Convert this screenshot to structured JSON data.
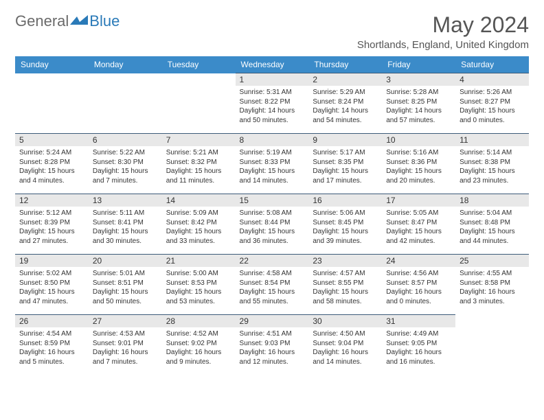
{
  "logo": {
    "text_general": "General",
    "text_blue": "Blue"
  },
  "title": "May 2024",
  "location": "Shortlands, England, United Kingdom",
  "colors": {
    "header_bg": "#3b8bc9",
    "header_text": "#ffffff",
    "daynum_bg": "#e8e8e8",
    "border": "#3b5a78",
    "logo_gray": "#6a6a6a",
    "logo_blue": "#2a7ab8"
  },
  "day_names": [
    "Sunday",
    "Monday",
    "Tuesday",
    "Wednesday",
    "Thursday",
    "Friday",
    "Saturday"
  ],
  "weeks": [
    [
      null,
      null,
      null,
      {
        "n": "1",
        "sr": "5:31 AM",
        "ss": "8:22 PM",
        "dl": "14 hours and 50 minutes."
      },
      {
        "n": "2",
        "sr": "5:29 AM",
        "ss": "8:24 PM",
        "dl": "14 hours and 54 minutes."
      },
      {
        "n": "3",
        "sr": "5:28 AM",
        "ss": "8:25 PM",
        "dl": "14 hours and 57 minutes."
      },
      {
        "n": "4",
        "sr": "5:26 AM",
        "ss": "8:27 PM",
        "dl": "15 hours and 0 minutes."
      }
    ],
    [
      {
        "n": "5",
        "sr": "5:24 AM",
        "ss": "8:28 PM",
        "dl": "15 hours and 4 minutes."
      },
      {
        "n": "6",
        "sr": "5:22 AM",
        "ss": "8:30 PM",
        "dl": "15 hours and 7 minutes."
      },
      {
        "n": "7",
        "sr": "5:21 AM",
        "ss": "8:32 PM",
        "dl": "15 hours and 11 minutes."
      },
      {
        "n": "8",
        "sr": "5:19 AM",
        "ss": "8:33 PM",
        "dl": "15 hours and 14 minutes."
      },
      {
        "n": "9",
        "sr": "5:17 AM",
        "ss": "8:35 PM",
        "dl": "15 hours and 17 minutes."
      },
      {
        "n": "10",
        "sr": "5:16 AM",
        "ss": "8:36 PM",
        "dl": "15 hours and 20 minutes."
      },
      {
        "n": "11",
        "sr": "5:14 AM",
        "ss": "8:38 PM",
        "dl": "15 hours and 23 minutes."
      }
    ],
    [
      {
        "n": "12",
        "sr": "5:12 AM",
        "ss": "8:39 PM",
        "dl": "15 hours and 27 minutes."
      },
      {
        "n": "13",
        "sr": "5:11 AM",
        "ss": "8:41 PM",
        "dl": "15 hours and 30 minutes."
      },
      {
        "n": "14",
        "sr": "5:09 AM",
        "ss": "8:42 PM",
        "dl": "15 hours and 33 minutes."
      },
      {
        "n": "15",
        "sr": "5:08 AM",
        "ss": "8:44 PM",
        "dl": "15 hours and 36 minutes."
      },
      {
        "n": "16",
        "sr": "5:06 AM",
        "ss": "8:45 PM",
        "dl": "15 hours and 39 minutes."
      },
      {
        "n": "17",
        "sr": "5:05 AM",
        "ss": "8:47 PM",
        "dl": "15 hours and 42 minutes."
      },
      {
        "n": "18",
        "sr": "5:04 AM",
        "ss": "8:48 PM",
        "dl": "15 hours and 44 minutes."
      }
    ],
    [
      {
        "n": "19",
        "sr": "5:02 AM",
        "ss": "8:50 PM",
        "dl": "15 hours and 47 minutes."
      },
      {
        "n": "20",
        "sr": "5:01 AM",
        "ss": "8:51 PM",
        "dl": "15 hours and 50 minutes."
      },
      {
        "n": "21",
        "sr": "5:00 AM",
        "ss": "8:53 PM",
        "dl": "15 hours and 53 minutes."
      },
      {
        "n": "22",
        "sr": "4:58 AM",
        "ss": "8:54 PM",
        "dl": "15 hours and 55 minutes."
      },
      {
        "n": "23",
        "sr": "4:57 AM",
        "ss": "8:55 PM",
        "dl": "15 hours and 58 minutes."
      },
      {
        "n": "24",
        "sr": "4:56 AM",
        "ss": "8:57 PM",
        "dl": "16 hours and 0 minutes."
      },
      {
        "n": "25",
        "sr": "4:55 AM",
        "ss": "8:58 PM",
        "dl": "16 hours and 3 minutes."
      }
    ],
    [
      {
        "n": "26",
        "sr": "4:54 AM",
        "ss": "8:59 PM",
        "dl": "16 hours and 5 minutes."
      },
      {
        "n": "27",
        "sr": "4:53 AM",
        "ss": "9:01 PM",
        "dl": "16 hours and 7 minutes."
      },
      {
        "n": "28",
        "sr": "4:52 AM",
        "ss": "9:02 PM",
        "dl": "16 hours and 9 minutes."
      },
      {
        "n": "29",
        "sr": "4:51 AM",
        "ss": "9:03 PM",
        "dl": "16 hours and 12 minutes."
      },
      {
        "n": "30",
        "sr": "4:50 AM",
        "ss": "9:04 PM",
        "dl": "16 hours and 14 minutes."
      },
      {
        "n": "31",
        "sr": "4:49 AM",
        "ss": "9:05 PM",
        "dl": "16 hours and 16 minutes."
      },
      null
    ]
  ],
  "labels": {
    "sunrise": "Sunrise:",
    "sunset": "Sunset:",
    "daylight": "Daylight:"
  }
}
